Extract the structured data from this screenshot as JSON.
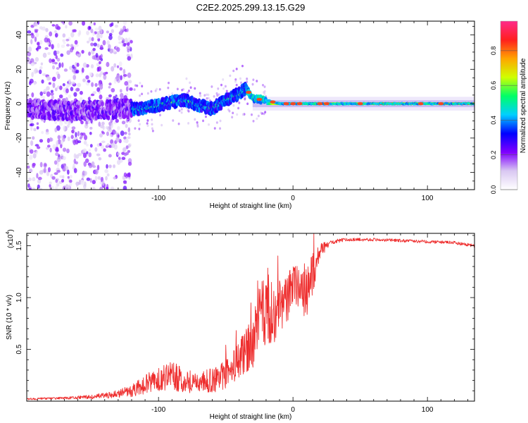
{
  "title": "C2E2.2025.299.13.15.G29",
  "chart_data": [
    {
      "type": "heatmap",
      "name": "spectrogram",
      "xlabel": "Height of straight line (km)",
      "ylabel": "Frequency (Hz)",
      "xlim": [
        -198,
        135
      ],
      "ylim": [
        -50,
        48
      ],
      "xticks": [
        -100,
        0,
        100
      ],
      "xtick_labels": [
        "-100",
        "0",
        "100"
      ],
      "yticks": [
        -40,
        -20,
        0,
        20,
        40
      ],
      "ytick_labels": [
        "-40",
        "-20",
        "0",
        "20",
        "40"
      ],
      "colorbar": {
        "label": "Normalized spectral amplitude",
        "range": [
          0.0,
          0.97
        ],
        "ticks": [
          0.0,
          0.2,
          0.4,
          0.6,
          0.8
        ],
        "tick_labels": [
          "0.0",
          "0.2",
          "0.4",
          "0.6",
          "0.8"
        ],
        "stops": [
          "#ffffff",
          "#d9c8f2",
          "#7f00ff",
          "#0000ff",
          "#00cfff",
          "#00ff66",
          "#d0ff00",
          "#ffa500",
          "#ff1f1f",
          "#ff2a8a"
        ]
      },
      "ridge": {
        "x": [
          -198,
          -170,
          -150,
          -130,
          -115,
          -100,
          -90,
          -80,
          -70,
          -60,
          -50,
          -40,
          -35,
          -30,
          -20,
          -10,
          0,
          10,
          20,
          40,
          135
        ],
        "y": [
          -3,
          -4,
          -4,
          -3,
          -3,
          -1,
          1,
          2,
          -1,
          -3,
          2,
          6,
          9,
          3,
          2,
          0,
          0,
          0,
          0,
          0,
          0
        ]
      }
    },
    {
      "type": "line",
      "name": "snr",
      "xlabel": "Height of straight line (km)",
      "ylabel": "SNR (10 * v/v)",
      "scale_label": "(x10",
      "scale_exp": "4",
      "xlim": [
        -198,
        135
      ],
      "ylim": [
        0.0,
        1.62
      ],
      "xticks": [
        -100,
        0,
        100
      ],
      "xtick_labels": [
        "-100",
        "0",
        "100"
      ],
      "yticks": [
        0.5,
        1.0,
        1.5
      ],
      "ytick_labels": [
        "0.5",
        "1.0",
        "1.5"
      ],
      "color": "#ee2e2e",
      "series": [
        {
          "name": "SNR",
          "x": [
            -198,
            -170,
            -150,
            -135,
            -120,
            -100,
            -90,
            -80,
            -70,
            -60,
            -50,
            -40,
            -35,
            -30,
            -25,
            -20,
            -17,
            -15,
            -10,
            -5,
            0,
            5,
            10,
            15,
            20,
            25,
            30,
            35,
            40,
            60,
            80,
            100,
            120,
            135
          ],
          "y": [
            0.02,
            0.03,
            0.04,
            0.06,
            0.1,
            0.22,
            0.24,
            0.2,
            0.18,
            0.2,
            0.25,
            0.4,
            0.5,
            0.55,
            0.8,
            0.9,
            0.95,
            0.75,
            0.92,
            0.95,
            1.15,
            1.1,
            1.05,
            1.25,
            1.45,
            1.5,
            1.54,
            1.55,
            1.56,
            1.56,
            1.55,
            1.54,
            1.53,
            1.5
          ],
          "noise": [
            0.01,
            0.01,
            0.02,
            0.03,
            0.06,
            0.12,
            0.14,
            0.12,
            0.1,
            0.12,
            0.14,
            0.18,
            0.22,
            0.25,
            0.3,
            0.35,
            0.4,
            0.3,
            0.25,
            0.25,
            0.2,
            0.22,
            0.3,
            0.2,
            0.08,
            0.04,
            0.02,
            0.02,
            0.015,
            0.015,
            0.015,
            0.015,
            0.015,
            0.015
          ]
        }
      ]
    }
  ]
}
